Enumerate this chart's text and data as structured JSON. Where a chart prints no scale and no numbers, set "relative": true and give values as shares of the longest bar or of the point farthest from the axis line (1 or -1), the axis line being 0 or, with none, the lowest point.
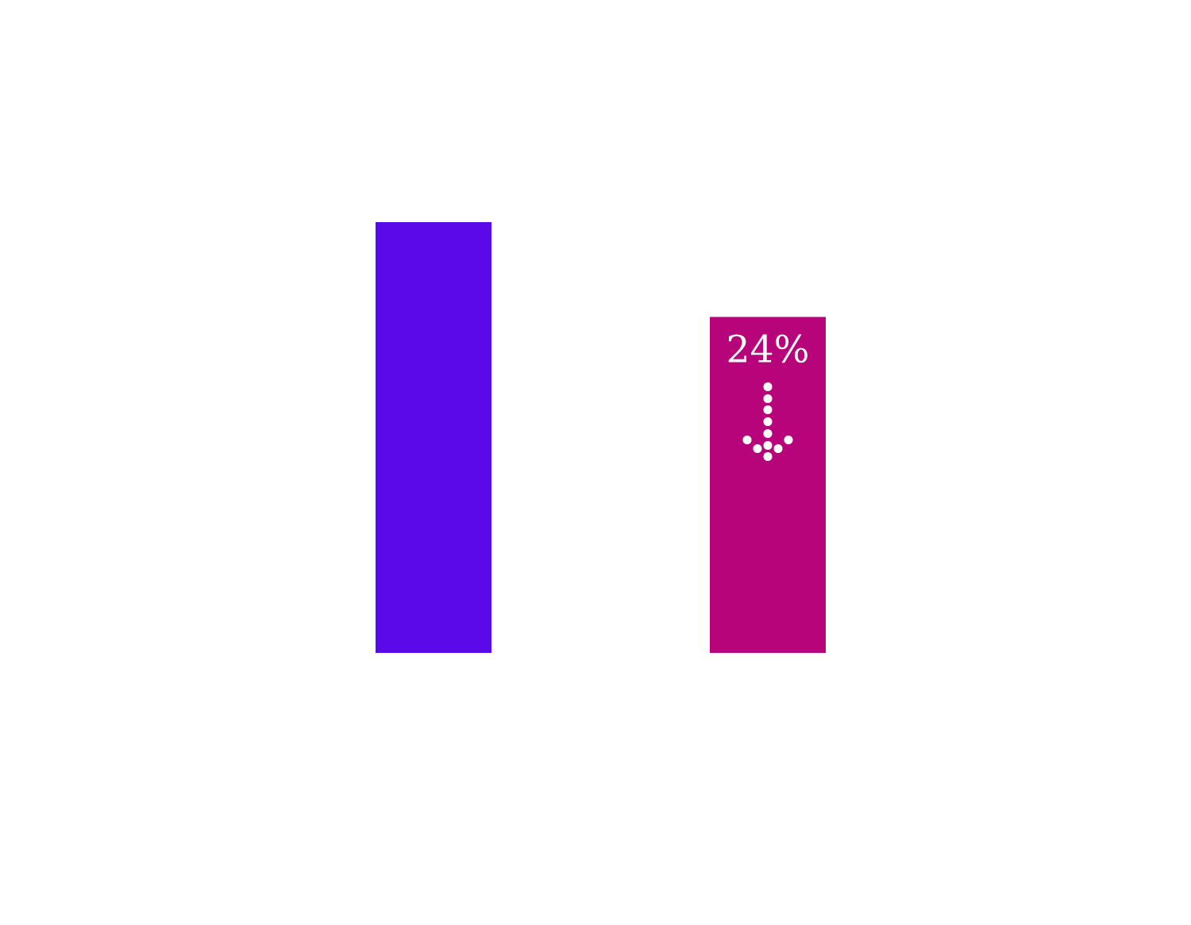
{
  "chart_data": {
    "type": "bar",
    "relative": true,
    "categories": [
      null,
      null
    ],
    "values": [
      1,
      0.78
    ],
    "colors": [
      "#5a0ae8",
      "#b8047a"
    ],
    "annotations": [
      "24%"
    ],
    "grid": false,
    "legend": false
  }
}
